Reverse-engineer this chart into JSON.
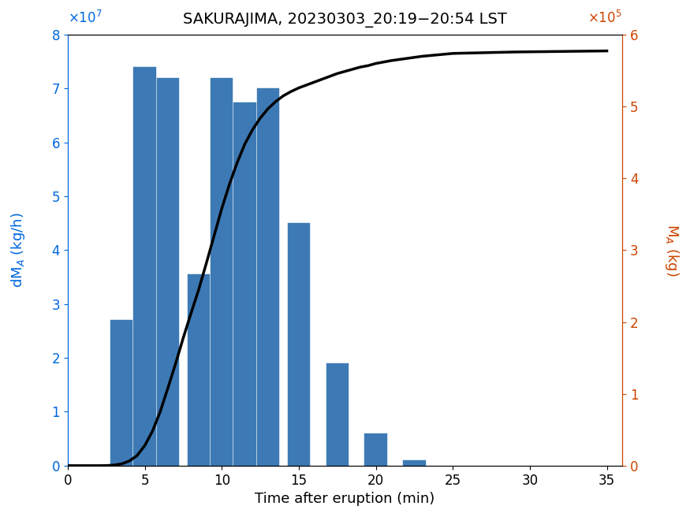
{
  "title": "SAKURAJIMA, 20230303_20:19−20:54 LST",
  "xlabel": "Time after eruption (min)",
  "bar_centers": [
    3.5,
    5.0,
    6.5,
    8.5,
    10.0,
    11.5,
    13.0,
    15.0,
    17.5,
    20.0,
    22.5
  ],
  "bar_heights": [
    27000000.0,
    74000000.0,
    72000000.0,
    35500000.0,
    72000000.0,
    67500000.0,
    70000000.0,
    45000000.0,
    19000000.0,
    6000000.0,
    1000000.0
  ],
  "bar_width": 1.45,
  "bar_color": "#3d7ab5",
  "line_x": [
    0,
    0.5,
    1.0,
    1.5,
    2.0,
    2.5,
    3.0,
    3.5,
    4.0,
    4.5,
    5.0,
    5.5,
    6.0,
    6.5,
    7.0,
    7.5,
    8.0,
    8.5,
    9.0,
    9.5,
    10.0,
    10.5,
    11.0,
    11.5,
    12.0,
    12.5,
    13.0,
    13.5,
    14.0,
    14.5,
    15.0,
    15.5,
    16.0,
    16.5,
    17.0,
    17.5,
    18.0,
    18.5,
    19.0,
    19.5,
    20.0,
    20.5,
    21.0,
    22.0,
    23.0,
    24.0,
    25.0,
    27.0,
    29.0,
    31.0,
    33.0,
    35.0
  ],
  "line_y": [
    0,
    0,
    0,
    0,
    0,
    100.0,
    800.0,
    2500.0,
    6500.0,
    14000.0,
    28000.0,
    48000.0,
    75000.0,
    108000.0,
    142000.0,
    178000.0,
    212000.0,
    245000.0,
    282000.0,
    320000.0,
    358000.0,
    392000.0,
    422000.0,
    448000.0,
    468000.0,
    484000.0,
    497000.0,
    507000.0,
    515000.0,
    521000.0,
    526000.0,
    530000.0,
    534000.0,
    538000.0,
    542000.0,
    546000.0,
    549000.0,
    552000.0,
    555000.0,
    557000.0,
    560000.0,
    562000.0,
    564000.0,
    567000.0,
    570000.0,
    572000.0,
    574000.0,
    575000.0,
    576000.0,
    576500.0,
    577000.0,
    577500.0
  ],
  "xlim": [
    0,
    36
  ],
  "ylim_left": [
    0,
    80000000.0
  ],
  "ylim_right": [
    0,
    600000.0
  ],
  "xticks": [
    0,
    5,
    10,
    15,
    20,
    25,
    30,
    35
  ],
  "yticks_left": [
    0,
    10000000.0,
    20000000.0,
    30000000.0,
    40000000.0,
    50000000.0,
    60000000.0,
    70000000.0,
    80000000.0
  ],
  "yticks_right": [
    0,
    100000.0,
    200000.0,
    300000.0,
    400000.0,
    500000.0,
    600000.0
  ],
  "left_color": "#0066dd",
  "right_color": "#cc4400",
  "line_color": "#000000",
  "line_width": 2.5,
  "title_fontsize": 14,
  "label_fontsize": 13,
  "tick_fontsize": 12
}
